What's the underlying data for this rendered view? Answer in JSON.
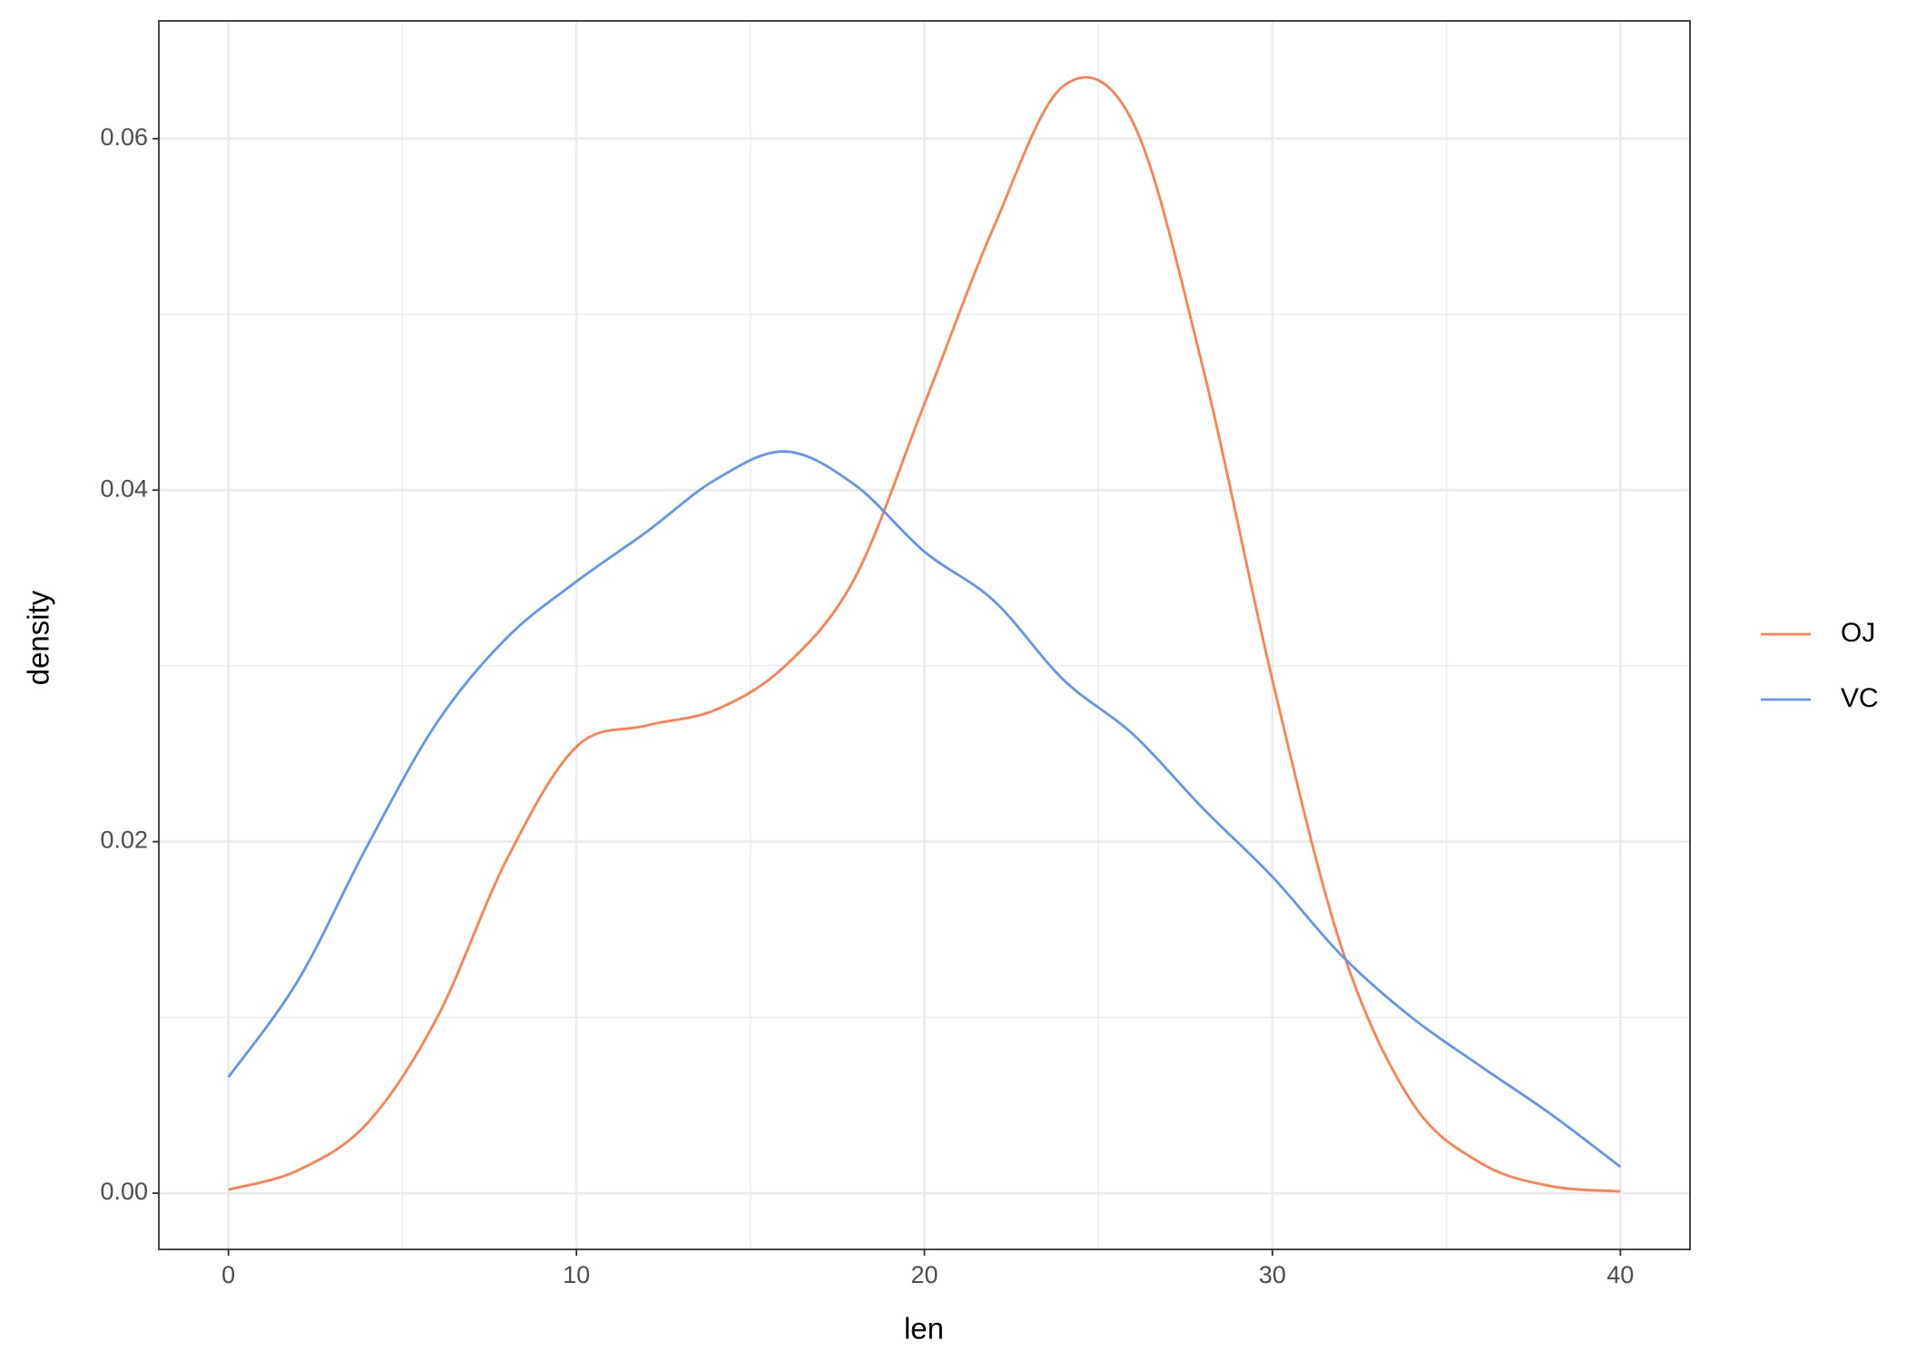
{
  "chart_data": {
    "type": "line",
    "x_label": "len",
    "y_label": "density",
    "x": [
      0,
      2,
      4,
      6,
      8,
      10,
      12,
      14,
      16,
      18,
      20,
      22,
      24,
      26,
      28,
      30,
      32,
      34,
      36,
      38,
      40
    ],
    "series": [
      {
        "name": "OJ",
        "color": "#ff7f50",
        "values": [
          0.0002,
          0.0013,
          0.004,
          0.01,
          0.019,
          0.0254,
          0.0266,
          0.0275,
          0.03,
          0.035,
          0.0449,
          0.055,
          0.063,
          0.0609,
          0.047,
          0.0292,
          0.0139,
          0.0052,
          0.0017,
          0.0004,
          0.0001
        ]
      },
      {
        "name": "VC",
        "color": "#6495ed",
        "values": [
          0.0066,
          0.0121,
          0.0198,
          0.0268,
          0.0316,
          0.0348,
          0.0376,
          0.0406,
          0.0422,
          0.0403,
          0.0365,
          0.0337,
          0.0292,
          0.0261,
          0.0219,
          0.018,
          0.0135,
          0.01,
          0.0072,
          0.0045,
          0.0015
        ]
      }
    ],
    "xlim": [
      -2,
      42
    ],
    "ylim": [
      -0.0032,
      0.0667
    ],
    "xticks": [
      0,
      10,
      20,
      30,
      40
    ],
    "yticks": [
      {
        "value": 0,
        "label": "0.00"
      },
      0.02,
      0.04,
      0.06
    ],
    "x_minor_grid": [
      5,
      15,
      25,
      35
    ],
    "y_minor_grid": [
      0.01,
      0.03,
      0.05
    ],
    "grid": true,
    "legend_position": "right"
  }
}
